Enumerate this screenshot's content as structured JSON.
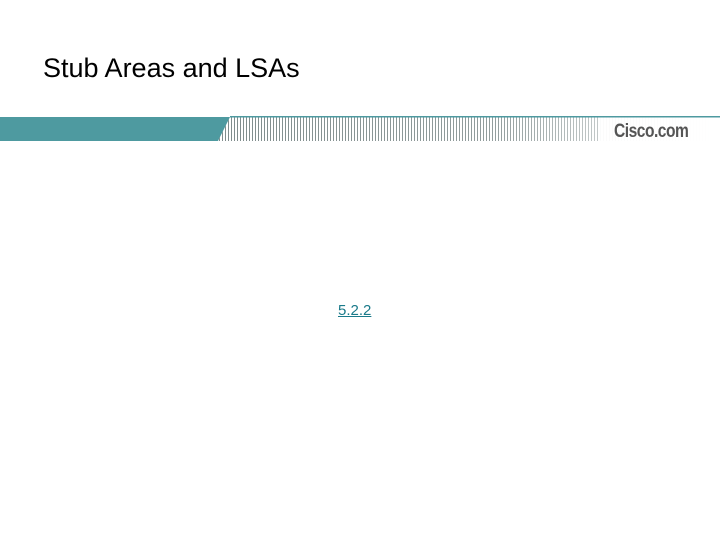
{
  "slide": {
    "title": "Stub Areas and LSAs",
    "brand_logo_text": "Cisco.com",
    "section_link": "5.2.2"
  },
  "colors": {
    "banner_teal": "#4e9aa0",
    "banner_stripe": "#8a8a8a",
    "link": "#1a7a8a",
    "logo": "#555555"
  }
}
